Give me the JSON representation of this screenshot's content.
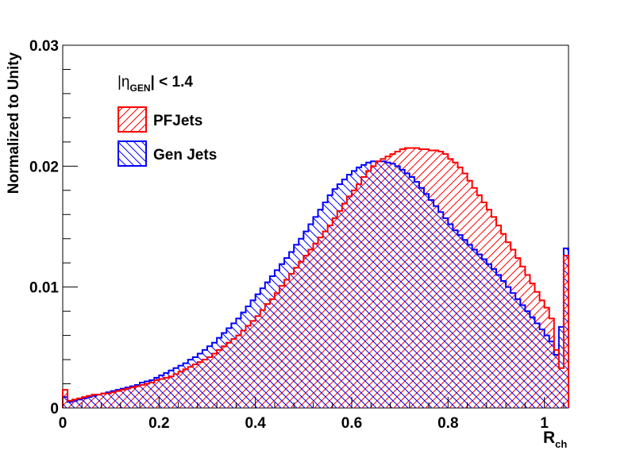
{
  "chart_data": {
    "type": "histogram",
    "ylabel": "Normalized to Unity",
    "xlabel_main": "R",
    "xlabel_sub": "ch",
    "xlim": [
      0,
      1.05
    ],
    "ylim": [
      0,
      0.03
    ],
    "xticks": [
      0,
      0.2,
      0.4,
      0.6,
      0.8,
      1
    ],
    "xtick_labels": [
      "0",
      "0.2",
      "0.4",
      "0.6",
      "0.8",
      "1"
    ],
    "yticks": [
      0,
      0.01,
      0.02,
      0.03
    ],
    "ytick_labels": [
      "0",
      "0.01",
      "0.02",
      "0.03"
    ],
    "bin_width": 0.01,
    "annotation": {
      "prefix": "|η",
      "sub": "GEN",
      "suffix": "| < 1.4"
    },
    "colors": {
      "pf": "#ff0000",
      "gen": "#0000ff"
    },
    "legend": [
      {
        "name": "PFJets",
        "color": "#ff0000",
        "hatch": "diagonal"
      },
      {
        "name": "Gen Jets",
        "color": "#0000ff",
        "hatch": "anti-diagonal"
      }
    ],
    "series": [
      {
        "name": "PFJets",
        "values": [
          0.0015,
          0.0006,
          0.0007,
          0.0008,
          0.0009,
          0.001,
          0.0011,
          0.0011,
          0.0012,
          0.0012,
          0.0013,
          0.0014,
          0.0015,
          0.0016,
          0.0017,
          0.0018,
          0.0019,
          0.002,
          0.0021,
          0.0023,
          0.0024,
          0.0025,
          0.0026,
          0.0028,
          0.003,
          0.0032,
          0.0034,
          0.0036,
          0.0038,
          0.004,
          0.0042,
          0.0045,
          0.0048,
          0.0051,
          0.0054,
          0.0057,
          0.006,
          0.0064,
          0.0068,
          0.0072,
          0.0076,
          0.0081,
          0.0086,
          0.009,
          0.0095,
          0.0101,
          0.0106,
          0.0111,
          0.0116,
          0.0121,
          0.0126,
          0.0131,
          0.0136,
          0.0141,
          0.0146,
          0.0151,
          0.0157,
          0.0163,
          0.0169,
          0.0175,
          0.018,
          0.0185,
          0.0191,
          0.0196,
          0.02,
          0.0204,
          0.0206,
          0.0208,
          0.021,
          0.0212,
          0.0214,
          0.0215,
          0.0215,
          0.0215,
          0.0214,
          0.0214,
          0.0213,
          0.0213,
          0.0212,
          0.021,
          0.0206,
          0.0203,
          0.0199,
          0.0194,
          0.0188,
          0.0182,
          0.0176,
          0.017,
          0.0164,
          0.0158,
          0.0151,
          0.0144,
          0.0137,
          0.0131,
          0.0124,
          0.0117,
          0.011,
          0.0103,
          0.0096,
          0.0089,
          0.0083,
          0.0074,
          0.0048,
          0.0033,
          0.0126
        ]
      },
      {
        "name": "Gen Jets",
        "values": [
          0.0009,
          0.0005,
          0.0006,
          0.0007,
          0.0008,
          0.0009,
          0.001,
          0.0011,
          0.0012,
          0.0013,
          0.0014,
          0.0015,
          0.0016,
          0.0017,
          0.0018,
          0.0019,
          0.0021,
          0.0022,
          0.0023,
          0.0025,
          0.0027,
          0.0029,
          0.0031,
          0.0033,
          0.0035,
          0.0037,
          0.004,
          0.0042,
          0.0045,
          0.0048,
          0.0051,
          0.0054,
          0.0058,
          0.0062,
          0.0066,
          0.007,
          0.0074,
          0.0079,
          0.0084,
          0.0089,
          0.0094,
          0.0099,
          0.0104,
          0.0109,
          0.0114,
          0.0119,
          0.0124,
          0.0129,
          0.0135,
          0.014,
          0.0146,
          0.0152,
          0.0158,
          0.0164,
          0.017,
          0.0176,
          0.0181,
          0.0185,
          0.0189,
          0.0193,
          0.0196,
          0.0199,
          0.0201,
          0.0203,
          0.0204,
          0.0204,
          0.0204,
          0.0203,
          0.0202,
          0.02,
          0.0197,
          0.0194,
          0.0191,
          0.0187,
          0.0182,
          0.0177,
          0.0172,
          0.0167,
          0.0162,
          0.0157,
          0.0152,
          0.0147,
          0.0143,
          0.0139,
          0.0135,
          0.0131,
          0.0127,
          0.0123,
          0.0119,
          0.0115,
          0.011,
          0.0105,
          0.01,
          0.0095,
          0.009,
          0.0085,
          0.008,
          0.0075,
          0.007,
          0.0065,
          0.006,
          0.0055,
          0.0044,
          0.0067,
          0.0132
        ]
      }
    ]
  }
}
